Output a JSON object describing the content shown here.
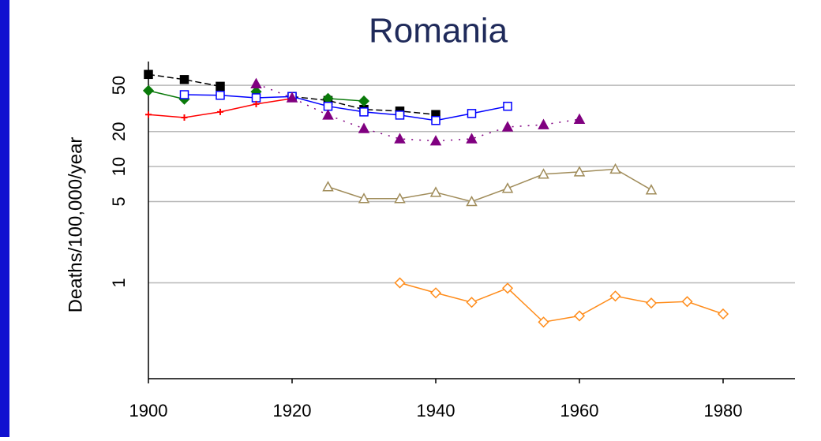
{
  "chart_data": {
    "type": "line",
    "title": "Romania",
    "y_label": "Deaths/100,000/year",
    "yscale": "log",
    "grid": true,
    "xlim": [
      1900,
      1990
    ],
    "xticks": [
      1900,
      1920,
      1940,
      1960,
      1980
    ],
    "ylim": [
      0.15,
      80
    ],
    "yticks": [
      1,
      5,
      10,
      20,
      50
    ],
    "x": [
      1900,
      1905,
      1910,
      1915,
      1920,
      1925,
      1930,
      1935,
      1940,
      1945,
      1950,
      1955,
      1960,
      1965,
      1970,
      1975,
      1980
    ],
    "series": [
      {
        "color": "#000000",
        "marker": "square-filled",
        "dash": "8,4",
        "values": [
          62,
          56,
          49,
          null,
          40,
          37,
          31,
          30,
          28,
          null,
          null,
          null,
          null,
          null,
          null,
          null,
          null
        ]
      },
      {
        "color": "#0a7a0a",
        "marker": "diamond-filled",
        "dash": "",
        "values": [
          45,
          38,
          null,
          44,
          null,
          38.5,
          36.6,
          null,
          null,
          null,
          null,
          null,
          null,
          null,
          null,
          null,
          null
        ]
      },
      {
        "color": "#0000ff",
        "marker": "square-open",
        "dash": "",
        "values": [
          null,
          41.5,
          41,
          39,
          40,
          33,
          29.5,
          27.7,
          24.9,
          28.6,
          33,
          null,
          null,
          null,
          null,
          null,
          null
        ]
      },
      {
        "color": "#ff0000",
        "marker": "plus",
        "dash": "",
        "values": [
          28,
          26.4,
          29.5,
          34.5,
          38.5,
          null,
          null,
          null,
          null,
          null,
          null,
          null,
          null,
          null,
          null,
          null,
          null
        ]
      },
      {
        "color": "#800080",
        "marker": "triangle-filled",
        "dash": "2,8",
        "values": [
          null,
          null,
          null,
          51.5,
          39,
          27.7,
          21.2,
          17.3,
          16.6,
          17.3,
          21.9,
          22.9,
          25.5,
          null,
          null,
          null,
          null
        ]
      },
      {
        "color": "#a08c5a",
        "marker": "triangle-open",
        "dash": "",
        "values": [
          null,
          null,
          null,
          null,
          null,
          6.7,
          5.3,
          5.3,
          6.0,
          5.0,
          6.5,
          8.6,
          9.0,
          9.5,
          6.3,
          null,
          null
        ]
      },
      {
        "color": "#ff8c1a",
        "marker": "diamond-open",
        "dash": "",
        "values": [
          null,
          null,
          null,
          null,
          null,
          null,
          null,
          1.0,
          0.82,
          0.68,
          0.9,
          0.46,
          0.52,
          0.77,
          0.67,
          0.69,
          0.54
        ]
      }
    ]
  }
}
